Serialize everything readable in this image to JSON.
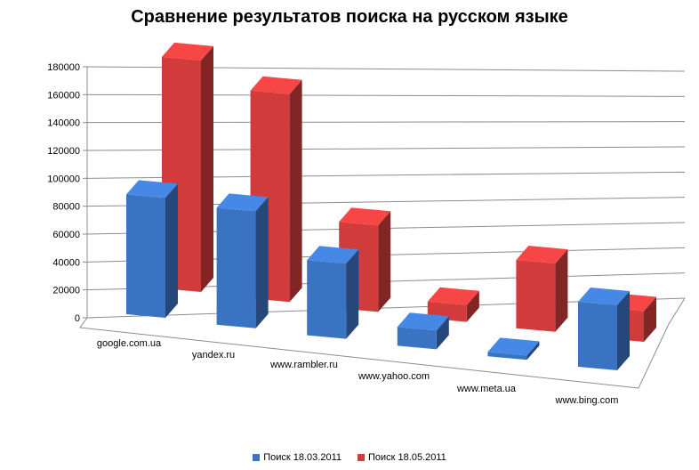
{
  "chart_data": {
    "type": "bar",
    "title": "Сравнение результатов поиска на русском языке",
    "categories": [
      "google.com.ua",
      "yandex.ru",
      "www.rambler.ru",
      "www.yahoo.com",
      "www.meta.ua",
      "www.bing.com"
    ],
    "series": [
      {
        "name": "Поиск 18.03.2011",
        "color": "#3b73c3",
        "values": [
          83000,
          81000,
          52000,
          13000,
          3000,
          45000
        ]
      },
      {
        "name": "Поиск 18.05.2011",
        "color": "#d13b3b",
        "values": [
          166000,
          149000,
          62000,
          12000,
          49000,
          22000
        ]
      }
    ],
    "y_ticks": [
      "0",
      "20000",
      "40000",
      "60000",
      "80000",
      "100000",
      "120000",
      "140000",
      "160000",
      "180000"
    ],
    "ylim": [
      0,
      180000
    ],
    "grid": true,
    "legend": "bottom",
    "view": "3d-clustered-columns"
  }
}
